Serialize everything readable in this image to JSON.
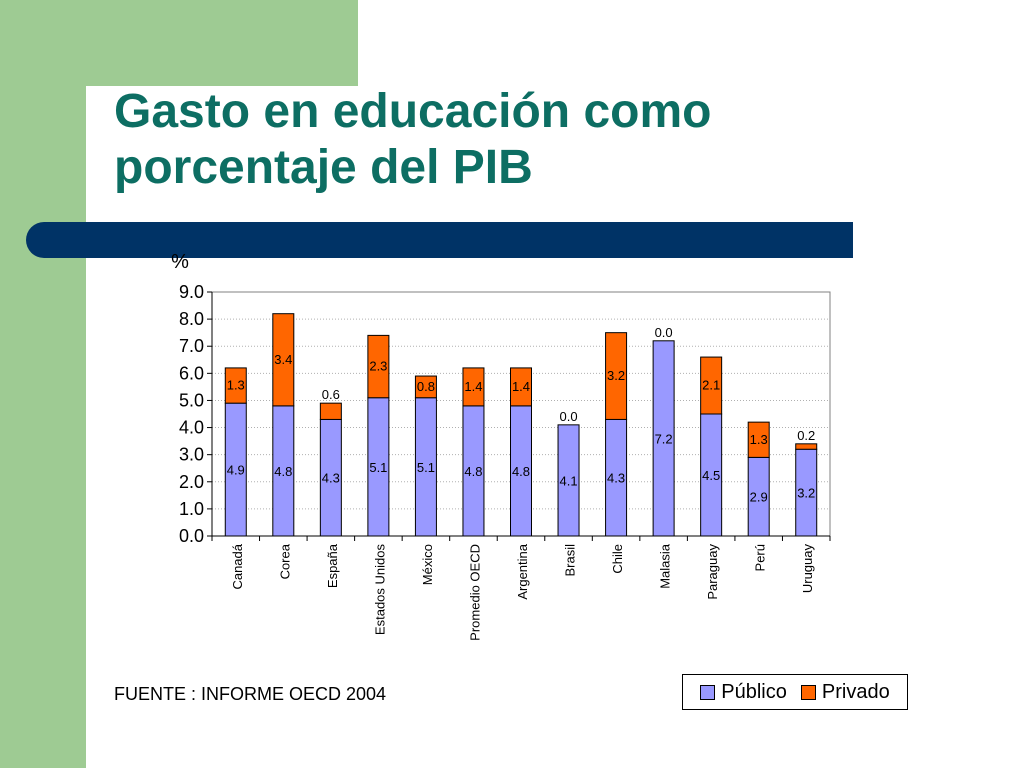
{
  "slide": {
    "title_line1": "Gasto en educación como",
    "title_line2": "porcentaje del PIB",
    "source": "FUENTE : INFORME OECD 2004",
    "colors": {
      "green": "#9ecb93",
      "title": "#0d6e63",
      "bar": "#003366"
    }
  },
  "chart_data": {
    "type": "bar",
    "stacked": true,
    "ylabel": "%",
    "ylim": [
      0,
      9
    ],
    "yticks": [
      "0.0",
      "1.0",
      "2.0",
      "3.0",
      "4.0",
      "5.0",
      "6.0",
      "7.0",
      "8.0",
      "9.0"
    ],
    "grid": true,
    "legend_position": "bottom-right",
    "categories": [
      "Canadá",
      "Corea",
      "España",
      "Estados Unidos",
      "México",
      "Promedio OECD",
      "Argentina",
      "Brasil",
      "Chile",
      "Malasia",
      "Paraguay",
      "Perú",
      "Uruguay"
    ],
    "series": [
      {
        "name": "Público",
        "color": "#9999ff",
        "values": [
          4.9,
          4.8,
          4.3,
          5.1,
          5.1,
          4.8,
          4.8,
          4.1,
          4.3,
          7.2,
          4.5,
          2.9,
          3.2
        ],
        "labels": [
          "4.9",
          "4.8",
          "4.3",
          "5.1",
          "5.1",
          "4.8",
          "4.8",
          "4.1",
          "4.3",
          "7.2",
          "4.5",
          "2.9",
          "3.2"
        ]
      },
      {
        "name": "Privado",
        "color": "#ff6600",
        "values": [
          1.3,
          3.4,
          0.6,
          2.3,
          0.8,
          1.4,
          1.4,
          0.0,
          3.2,
          0.0,
          2.1,
          1.3,
          0.2
        ],
        "labels": [
          "1.3",
          "3.4",
          "0.6",
          "2.3",
          "0.8",
          "1.4",
          "1.4",
          "0.0",
          "3.2",
          "0.0",
          "2.1",
          "1.3",
          "0.2"
        ]
      }
    ]
  }
}
